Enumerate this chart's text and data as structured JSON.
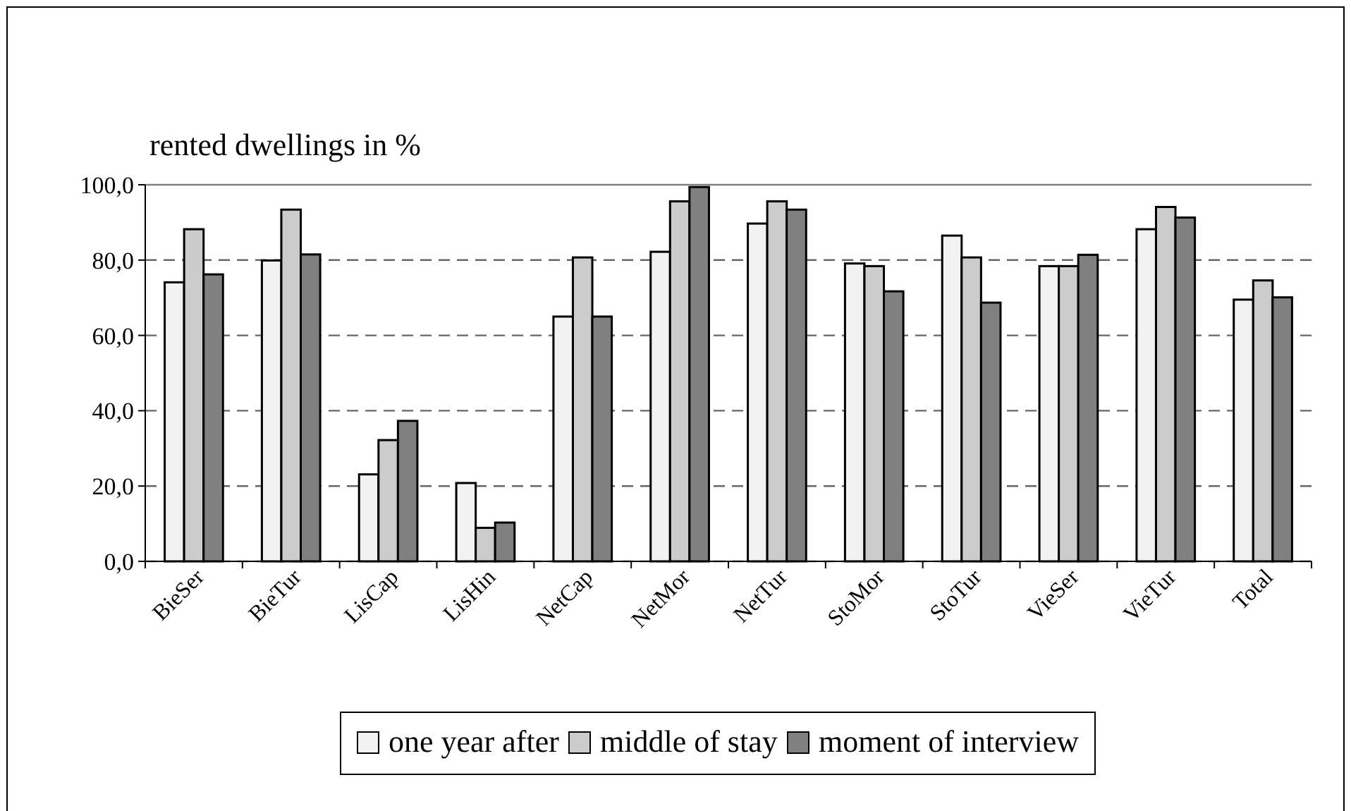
{
  "chart_data": {
    "type": "bar",
    "title": "rented dwellings in %",
    "categories": [
      "BieSer",
      "BieTur",
      "LisCap",
      "LisHin",
      "NetCap",
      "NetMor",
      "NetTur",
      "StoMor",
      "StoTur",
      "VieSer",
      "VieTur",
      "Total"
    ],
    "series": [
      {
        "name": "one year after",
        "color": "#f2f2f2",
        "values": [
          74.1,
          79.9,
          23.1,
          20.8,
          65.0,
          82.2,
          89.7,
          79.1,
          86.5,
          78.4,
          88.2,
          69.5
        ]
      },
      {
        "name": "middle of stay",
        "color": "#cccccc",
        "values": [
          88.2,
          93.4,
          32.2,
          8.9,
          80.7,
          95.6,
          95.6,
          78.4,
          80.7,
          78.4,
          94.1,
          74.6
        ]
      },
      {
        "name": "moment of interview",
        "color": "#808080",
        "values": [
          76.2,
          81.5,
          37.3,
          10.3,
          65.0,
          99.4,
          93.4,
          71.7,
          68.7,
          81.4,
          91.3,
          70.1
        ]
      }
    ],
    "ylim": [
      0,
      100
    ],
    "yticks": [
      {
        "value": 0,
        "label": "0,0"
      },
      {
        "value": 20,
        "label": "20,0"
      },
      {
        "value": 40,
        "label": "40,0"
      },
      {
        "value": 60,
        "label": "60,0"
      },
      {
        "value": 80,
        "label": "80,0"
      },
      {
        "value": 100,
        "label": "100,0"
      }
    ],
    "grid": "y",
    "line_style": "dashed",
    "legend": "bottom"
  }
}
